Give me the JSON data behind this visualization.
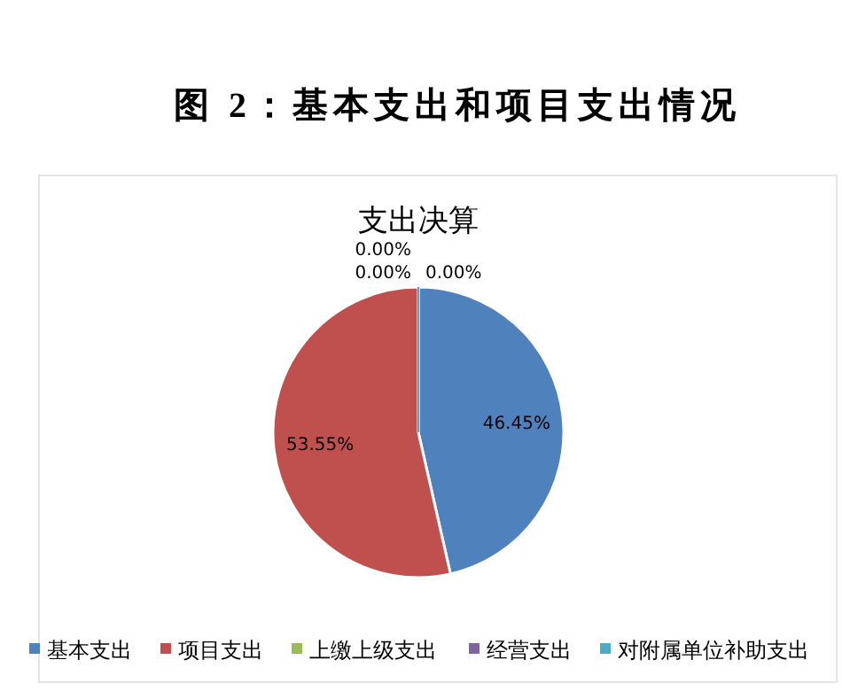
{
  "chart_data": {
    "type": "pie",
    "title": "图 2：基本支出和项目支出情况",
    "subtitle": "支出决算",
    "categories": [
      "基本支出",
      "项目支出",
      "上缴上级支出",
      "经营支出",
      "对附属单位补助支出"
    ],
    "values": [
      46.45,
      53.55,
      0,
      0,
      0
    ],
    "colors": [
      "#4f81bd",
      "#c0504d",
      "#9bbb59",
      "#8064a2",
      "#4bacc6"
    ],
    "value_labels": [
      "46.45%",
      "53.55%",
      "0.00%",
      "0.00%",
      "0.00%"
    ],
    "legend": "bottom"
  }
}
